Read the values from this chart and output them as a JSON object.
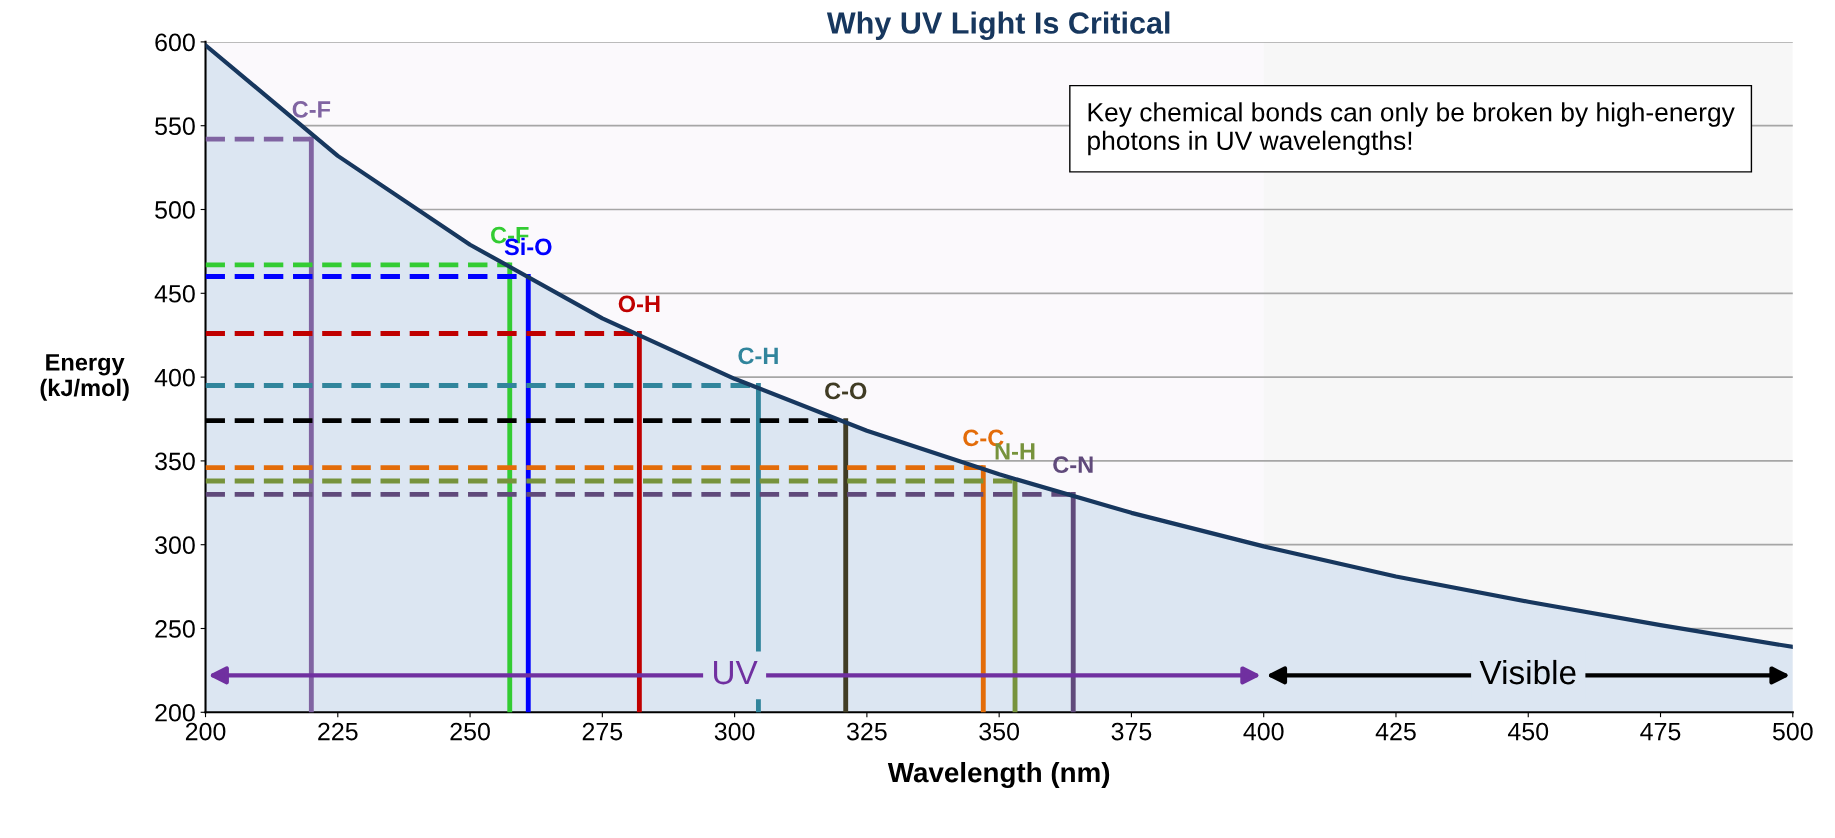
{
  "chart_data": {
    "type": "area",
    "title": "Why UV Light Is Critical",
    "xlabel": "Wavelength (nm)",
    "ylabel": "Energy\n(kJ/mol)",
    "xlim": [
      200,
      500
    ],
    "ylim": [
      200,
      600
    ],
    "xticks": [
      200,
      225,
      250,
      275,
      300,
      325,
      350,
      375,
      400,
      425,
      450,
      475,
      500
    ],
    "yticks": [
      200,
      250,
      300,
      350,
      400,
      450,
      500,
      550,
      600
    ],
    "grid": "y",
    "legend": false,
    "marker": "none",
    "series": [
      {
        "color": "#17375e",
        "x": [
          200,
          225,
          250,
          275,
          300,
          325,
          350,
          375,
          400,
          425,
          450,
          475,
          500
        ],
        "values": [
          598,
          532,
          479,
          435,
          399,
          368,
          342,
          319,
          299,
          281,
          266,
          252,
          239
        ]
      },
      {
        "type": "line",
        "line_style": "dashed",
        "color": "#8064a2",
        "x": [
          200,
          220
        ],
        "values": [
          542,
          542
        ]
      },
      {
        "type": "line",
        "line_style": "solid",
        "name": "C-F",
        "color": "#8064a2",
        "x": [
          220,
          220
        ],
        "values": [
          200,
          542
        ]
      },
      {
        "type": "line",
        "line_style": "dashed",
        "color": "#33cc33",
        "x": [
          200,
          257.5
        ],
        "values": [
          467,
          467
        ]
      },
      {
        "type": "line",
        "line_style": "solid",
        "name": "C-F",
        "color": "#33cc33",
        "x": [
          257.5,
          257.5
        ],
        "values": [
          200,
          467
        ]
      },
      {
        "type": "line",
        "line_style": "dashed",
        "color": "#0000ff",
        "x": [
          200,
          261
        ],
        "values": [
          460,
          460
        ]
      },
      {
        "type": "line",
        "line_style": "solid",
        "name": "Si-O",
        "color": "#0000ff",
        "x": [
          261,
          261
        ],
        "values": [
          200,
          460
        ]
      },
      {
        "type": "line",
        "line_style": "dashed",
        "color": "#c00000",
        "x": [
          200,
          282
        ],
        "values": [
          426,
          426
        ]
      },
      {
        "type": "line",
        "line_style": "solid",
        "name": "O-H",
        "color": "#c00000",
        "x": [
          282,
          282
        ],
        "values": [
          200,
          426
        ]
      },
      {
        "type": "line",
        "line_style": "dashed",
        "color": "#31859c",
        "x": [
          200,
          304.5
        ],
        "values": [
          395,
          395
        ]
      },
      {
        "type": "line",
        "line_style": "solid",
        "name": "C-H",
        "color": "#31859c",
        "x": [
          304.5,
          304.5
        ],
        "values": [
          200,
          395
        ]
      },
      {
        "type": "line",
        "line_style": "dashed",
        "color": "#000000",
        "x": [
          200,
          321
        ],
        "values": [
          374,
          374
        ]
      },
      {
        "type": "line",
        "line_style": "solid",
        "name": "C-O",
        "color": "#403c24",
        "x": [
          321,
          321
        ],
        "values": [
          200,
          374
        ]
      },
      {
        "type": "line",
        "line_style": "dashed",
        "color": "#e36c09",
        "x": [
          200,
          347
        ],
        "values": [
          346,
          346
        ]
      },
      {
        "type": "line",
        "line_style": "solid",
        "name": "C-C",
        "color": "#e36c09",
        "x": [
          347,
          347
        ],
        "values": [
          200,
          346
        ]
      },
      {
        "type": "line",
        "line_style": "dashed",
        "color": "#77933c",
        "x": [
          200,
          353
        ],
        "values": [
          338,
          338
        ]
      },
      {
        "type": "line",
        "line_style": "solid",
        "name": "N-H",
        "color": "#77933c",
        "x": [
          353,
          353
        ],
        "values": [
          200,
          338
        ]
      },
      {
        "type": "line",
        "line_style": "dashed",
        "color": "#604a7b",
        "x": [
          200,
          364
        ],
        "values": [
          330,
          330
        ]
      },
      {
        "type": "line",
        "line_style": "solid",
        "name": "C-N",
        "color": "#604a7b",
        "x": [
          364,
          364
        ],
        "values": [
          200,
          330
        ]
      }
    ],
    "bands": [
      {
        "axis": "x",
        "from": 200,
        "to": 400,
        "label": "UV",
        "color": "#7030a0"
      },
      {
        "axis": "x",
        "from": 400,
        "to": 500,
        "label": "Visible",
        "color": "#000000"
      }
    ],
    "annotations": [
      "Key chemical bonds can only be broken by high-energy photons in UV wavelengths!"
    ]
  }
}
